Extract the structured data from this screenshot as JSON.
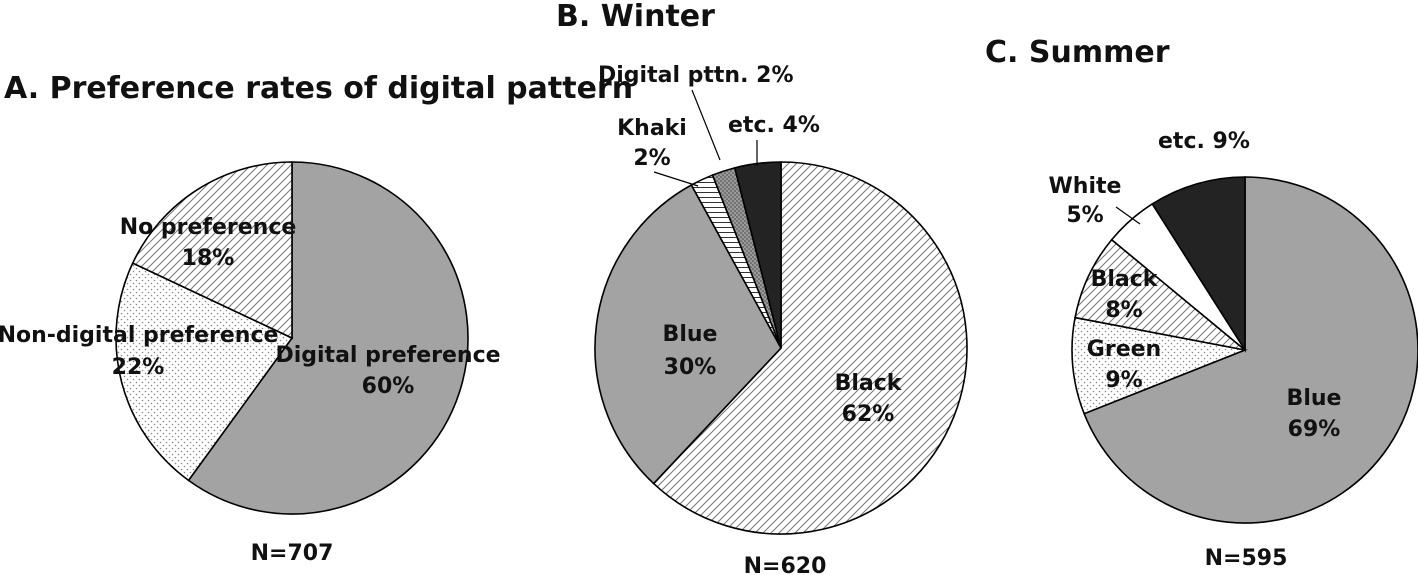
{
  "chart_data": [
    {
      "type": "pie",
      "title": "A. Preference rates of digital pattern",
      "n_label": "N=707",
      "slices": [
        {
          "name": "Digital preference",
          "value": 60,
          "value_label": "60%",
          "fill": "gray"
        },
        {
          "name": "Non-digital preference",
          "value": 22,
          "value_label": "22%",
          "fill": "dots"
        },
        {
          "name": "No preference",
          "value": 18,
          "value_label": "18%",
          "fill": "hatch"
        }
      ]
    },
    {
      "type": "pie",
      "title": "B. Winter",
      "n_label": "N=620",
      "slices": [
        {
          "name": "Black",
          "value": 62,
          "value_label": "62%",
          "fill": "hatch"
        },
        {
          "name": "Blue",
          "value": 30,
          "value_label": "30%",
          "fill": "gray"
        },
        {
          "name": "Khaki",
          "value": 2,
          "value_label": "2%",
          "fill": "hlines"
        },
        {
          "name": "Digital pttn.",
          "value": 2,
          "value_label": "2%",
          "fill": "darkdots"
        },
        {
          "name": "etc.",
          "value": 4,
          "value_label": "4%",
          "fill": "black"
        }
      ]
    },
    {
      "type": "pie",
      "title": "C. Summer",
      "n_label": "N=595",
      "slices": [
        {
          "name": "Blue",
          "value": 69,
          "value_label": "69%",
          "fill": "gray"
        },
        {
          "name": "Green",
          "value": 9,
          "value_label": "9%",
          "fill": "dots"
        },
        {
          "name": "Black",
          "value": 8,
          "value_label": "8%",
          "fill": "hatch"
        },
        {
          "name": "White",
          "value": 5,
          "value_label": "5%",
          "fill": "white"
        },
        {
          "name": "etc.",
          "value": 9,
          "value_label": "9%",
          "fill": "black"
        }
      ]
    }
  ]
}
